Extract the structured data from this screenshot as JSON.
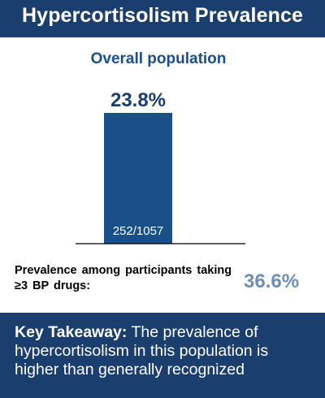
{
  "header": {
    "title": "Hypercortisolism Prevalence"
  },
  "chart_data": {
    "type": "bar",
    "title": "Overall population",
    "categories": [
      "Overall population"
    ],
    "values": [
      23.8
    ],
    "value_labels": [
      "23.8%"
    ],
    "bar_labels": [
      "252/1057"
    ],
    "ylim": [
      0,
      23.8
    ],
    "colors": {
      "bar": "#1a5089",
      "axis": "#000000"
    }
  },
  "prevalence": {
    "label": "Prevalence among participants taking ≥3 BP drugs:",
    "value": "36.6%",
    "color": "#6d8fb6"
  },
  "takeaway": {
    "heading": "Key Takeaway:",
    "text": " The prevalence of hypercortisolism in this population is higher than generally recognized"
  }
}
